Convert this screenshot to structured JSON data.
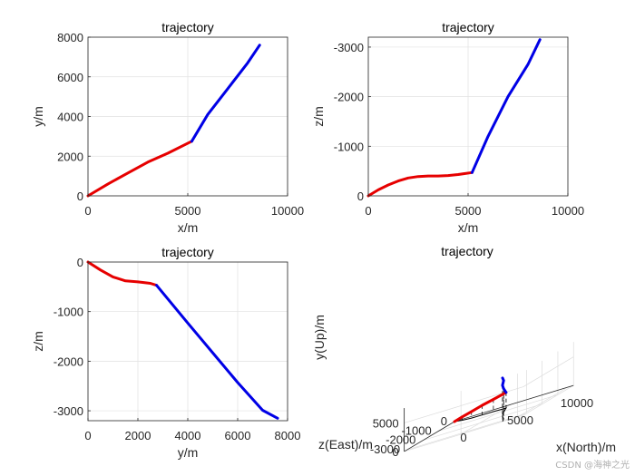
{
  "colors": {
    "segment1": "#e60000",
    "segment2": "#0000e6",
    "background": "#ffffff"
  },
  "watermark": "CSDN @海神之光",
  "chart_data": [
    {
      "type": "line",
      "title": "trajectory",
      "xlabel": "x/m",
      "ylabel": "y/m",
      "xlim": [
        0,
        10000
      ],
      "ylim": [
        0,
        8000
      ],
      "xticks": [
        0,
        5000,
        10000
      ],
      "yticks": [
        0,
        2000,
        4000,
        6000,
        8000
      ],
      "yreversed": false,
      "grid": true,
      "series": [
        {
          "color": "#e60000",
          "x": [
            0,
            1000,
            2000,
            3000,
            4000,
            5200
          ],
          "y": [
            0,
            600,
            1150,
            1700,
            2150,
            2750
          ]
        },
        {
          "color": "#0000e6",
          "x": [
            5200,
            6000,
            7000,
            8000,
            8600
          ],
          "y": [
            2750,
            4100,
            5400,
            6700,
            7600
          ]
        }
      ]
    },
    {
      "type": "line",
      "title": "trajectory",
      "xlabel": "x/m",
      "ylabel": "z/m",
      "xlim": [
        0,
        10000
      ],
      "ylim": [
        0,
        -3200
      ],
      "xticks": [
        0,
        5000,
        10000
      ],
      "yticks": [
        0,
        -1000,
        -2000,
        -3000
      ],
      "yreversed": true,
      "grid": true,
      "series": [
        {
          "color": "#e60000",
          "x": [
            0,
            500,
            1000,
            1500,
            2000,
            2500,
            3000,
            3500,
            4000,
            4500,
            5200
          ],
          "y": [
            0,
            -120,
            -220,
            -300,
            -360,
            -390,
            -400,
            -400,
            -410,
            -430,
            -470
          ]
        },
        {
          "color": "#0000e6",
          "x": [
            5200,
            6000,
            7000,
            8000,
            8600
          ],
          "y": [
            -470,
            -1200,
            -2000,
            -2650,
            -3150
          ]
        }
      ]
    },
    {
      "type": "line",
      "title": "trajectory",
      "xlabel": "y/m",
      "ylabel": "z/m",
      "xlim": [
        0,
        8000
      ],
      "ylim": [
        -3200,
        0
      ],
      "xticks": [
        0,
        2000,
        4000,
        6000,
        8000
      ],
      "yticks": [
        0,
        -1000,
        -2000,
        -3000
      ],
      "yreversed": false,
      "grid": true,
      "series": [
        {
          "color": "#e60000",
          "x": [
            0,
            500,
            1000,
            1500,
            2000,
            2500,
            2750
          ],
          "y": [
            0,
            -160,
            -300,
            -380,
            -400,
            -430,
            -470
          ]
        },
        {
          "color": "#0000e6",
          "x": [
            2750,
            4000,
            5000,
            6000,
            7000,
            7600
          ],
          "y": [
            -470,
            -1230,
            -1830,
            -2430,
            -2990,
            -3150
          ]
        }
      ]
    },
    {
      "type": "line",
      "title": "trajectory",
      "xlabel": "x(North)/m",
      "ylabel": "y(Up)/m",
      "zlabel": "z(East)/m",
      "xticks": [
        0,
        5000,
        10000
      ],
      "zticks": [
        -3000,
        -2000,
        -1000,
        0
      ],
      "yticks": [
        0,
        5000
      ],
      "drop_lines": true,
      "grid": true,
      "series": [
        {
          "color": "#e60000",
          "north": [
            0,
            1000,
            2000,
            3000,
            4000,
            5200
          ],
          "up": [
            0,
            600,
            1150,
            1700,
            2150,
            2750
          ],
          "east": [
            0,
            -220,
            -360,
            -400,
            -410,
            -470
          ]
        },
        {
          "color": "#0000e6",
          "north": [
            5200,
            6000,
            7000,
            8000,
            8600
          ],
          "up": [
            2750,
            4100,
            5400,
            6700,
            7600
          ],
          "east": [
            -470,
            -1200,
            -2000,
            -2650,
            -3150
          ]
        }
      ]
    }
  ]
}
